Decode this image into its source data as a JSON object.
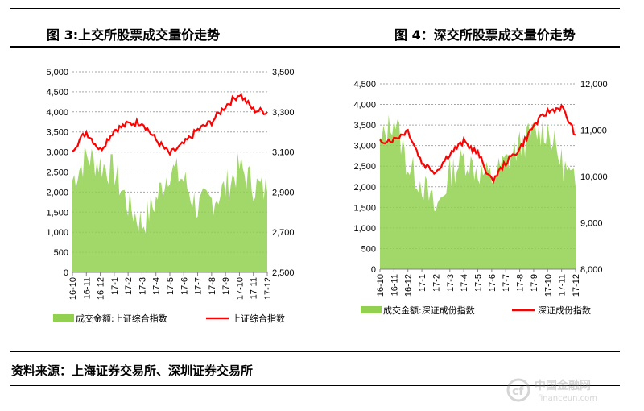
{
  "chart1": {
    "title": "图 3:上交所股票成交量价走势",
    "chart_data": {
      "type": "area+line",
      "categories": [
        "16-10",
        "16-11",
        "16-12",
        "17-1",
        "17-2",
        "17-3",
        "17-4",
        "17-5",
        "17-6",
        "17-7",
        "17-8",
        "17-9",
        "17-10",
        "17-11",
        "17-12"
      ],
      "y_left": {
        "ylim": [
          0,
          5000
        ],
        "ticks": [
          "0",
          "500",
          "1,000",
          "1,500",
          "2,000",
          "2,500",
          "3,000",
          "3,500",
          "4,000",
          "4,500",
          "5,000"
        ]
      },
      "y_right": {
        "ylim": [
          2500,
          3500
        ],
        "ticks": [
          "2,500",
          "2,700",
          "2,900",
          "3,100",
          "3,300",
          "3,500"
        ]
      },
      "grid": true,
      "legend_placement": "bottom",
      "series": [
        {
          "name": "成交金额:上证综合指数",
          "axis": "left",
          "kind": "area",
          "color": "#92d050",
          "values": [
            2300,
            2900,
            2700,
            2500,
            1700,
            1200,
            1800,
            2600,
            2300,
            1600,
            1800,
            2100,
            2600,
            2200,
            2000
          ]
        },
        {
          "name": "上证综合指数",
          "axis": "right",
          "kind": "line",
          "color": "#ff0000",
          "values": [
            3115,
            3200,
            3110,
            3210,
            3240,
            3250,
            3160,
            3090,
            3140,
            3210,
            3250,
            3330,
            3390,
            3310,
            3300
          ]
        }
      ]
    }
  },
  "chart2": {
    "title": "图 4：深交所股票成交量价走势",
    "chart_data": {
      "type": "area+line",
      "categories": [
        "16-10",
        "16-11",
        "16-12",
        "17-1",
        "17-2",
        "17-3",
        "17-4",
        "17-5",
        "17-6",
        "17-7",
        "17-8",
        "17-9",
        "17-10",
        "17-11",
        "17-12"
      ],
      "y_left": {
        "ylim": [
          0,
          4500
        ],
        "ticks": [
          "0",
          "500",
          "1,000",
          "1,500",
          "2,000",
          "2,500",
          "3,000",
          "3,500",
          "4,000",
          "4,500"
        ]
      },
      "y_right": {
        "ylim": [
          8000,
          12000
        ],
        "ticks": [
          "8,000",
          "9,000",
          "10,000",
          "11,000",
          "12,000"
        ]
      },
      "grid": true,
      "legend_placement": "bottom",
      "series": [
        {
          "name": "成交金额:深证成份指数",
          "axis": "left",
          "kind": "area",
          "color": "#92d050",
          "values": [
            3000,
            3700,
            2500,
            2100,
            1400,
            2300,
            2700,
            2400,
            2200,
            2600,
            3000,
            3300,
            3400,
            2600,
            2000
          ]
        },
        {
          "name": "深证成份指数",
          "axis": "right",
          "kind": "line",
          "color": "#ff0000",
          "values": [
            10770,
            10800,
            11000,
            10300,
            10100,
            10500,
            10750,
            10500,
            9900,
            10300,
            10600,
            11100,
            11400,
            11500,
            10900
          ]
        }
      ]
    }
  },
  "source": "资料来源：上海证券交易所、深圳证券交易所",
  "watermark": {
    "cn": "中国金融网",
    "en": "financeun.com"
  }
}
